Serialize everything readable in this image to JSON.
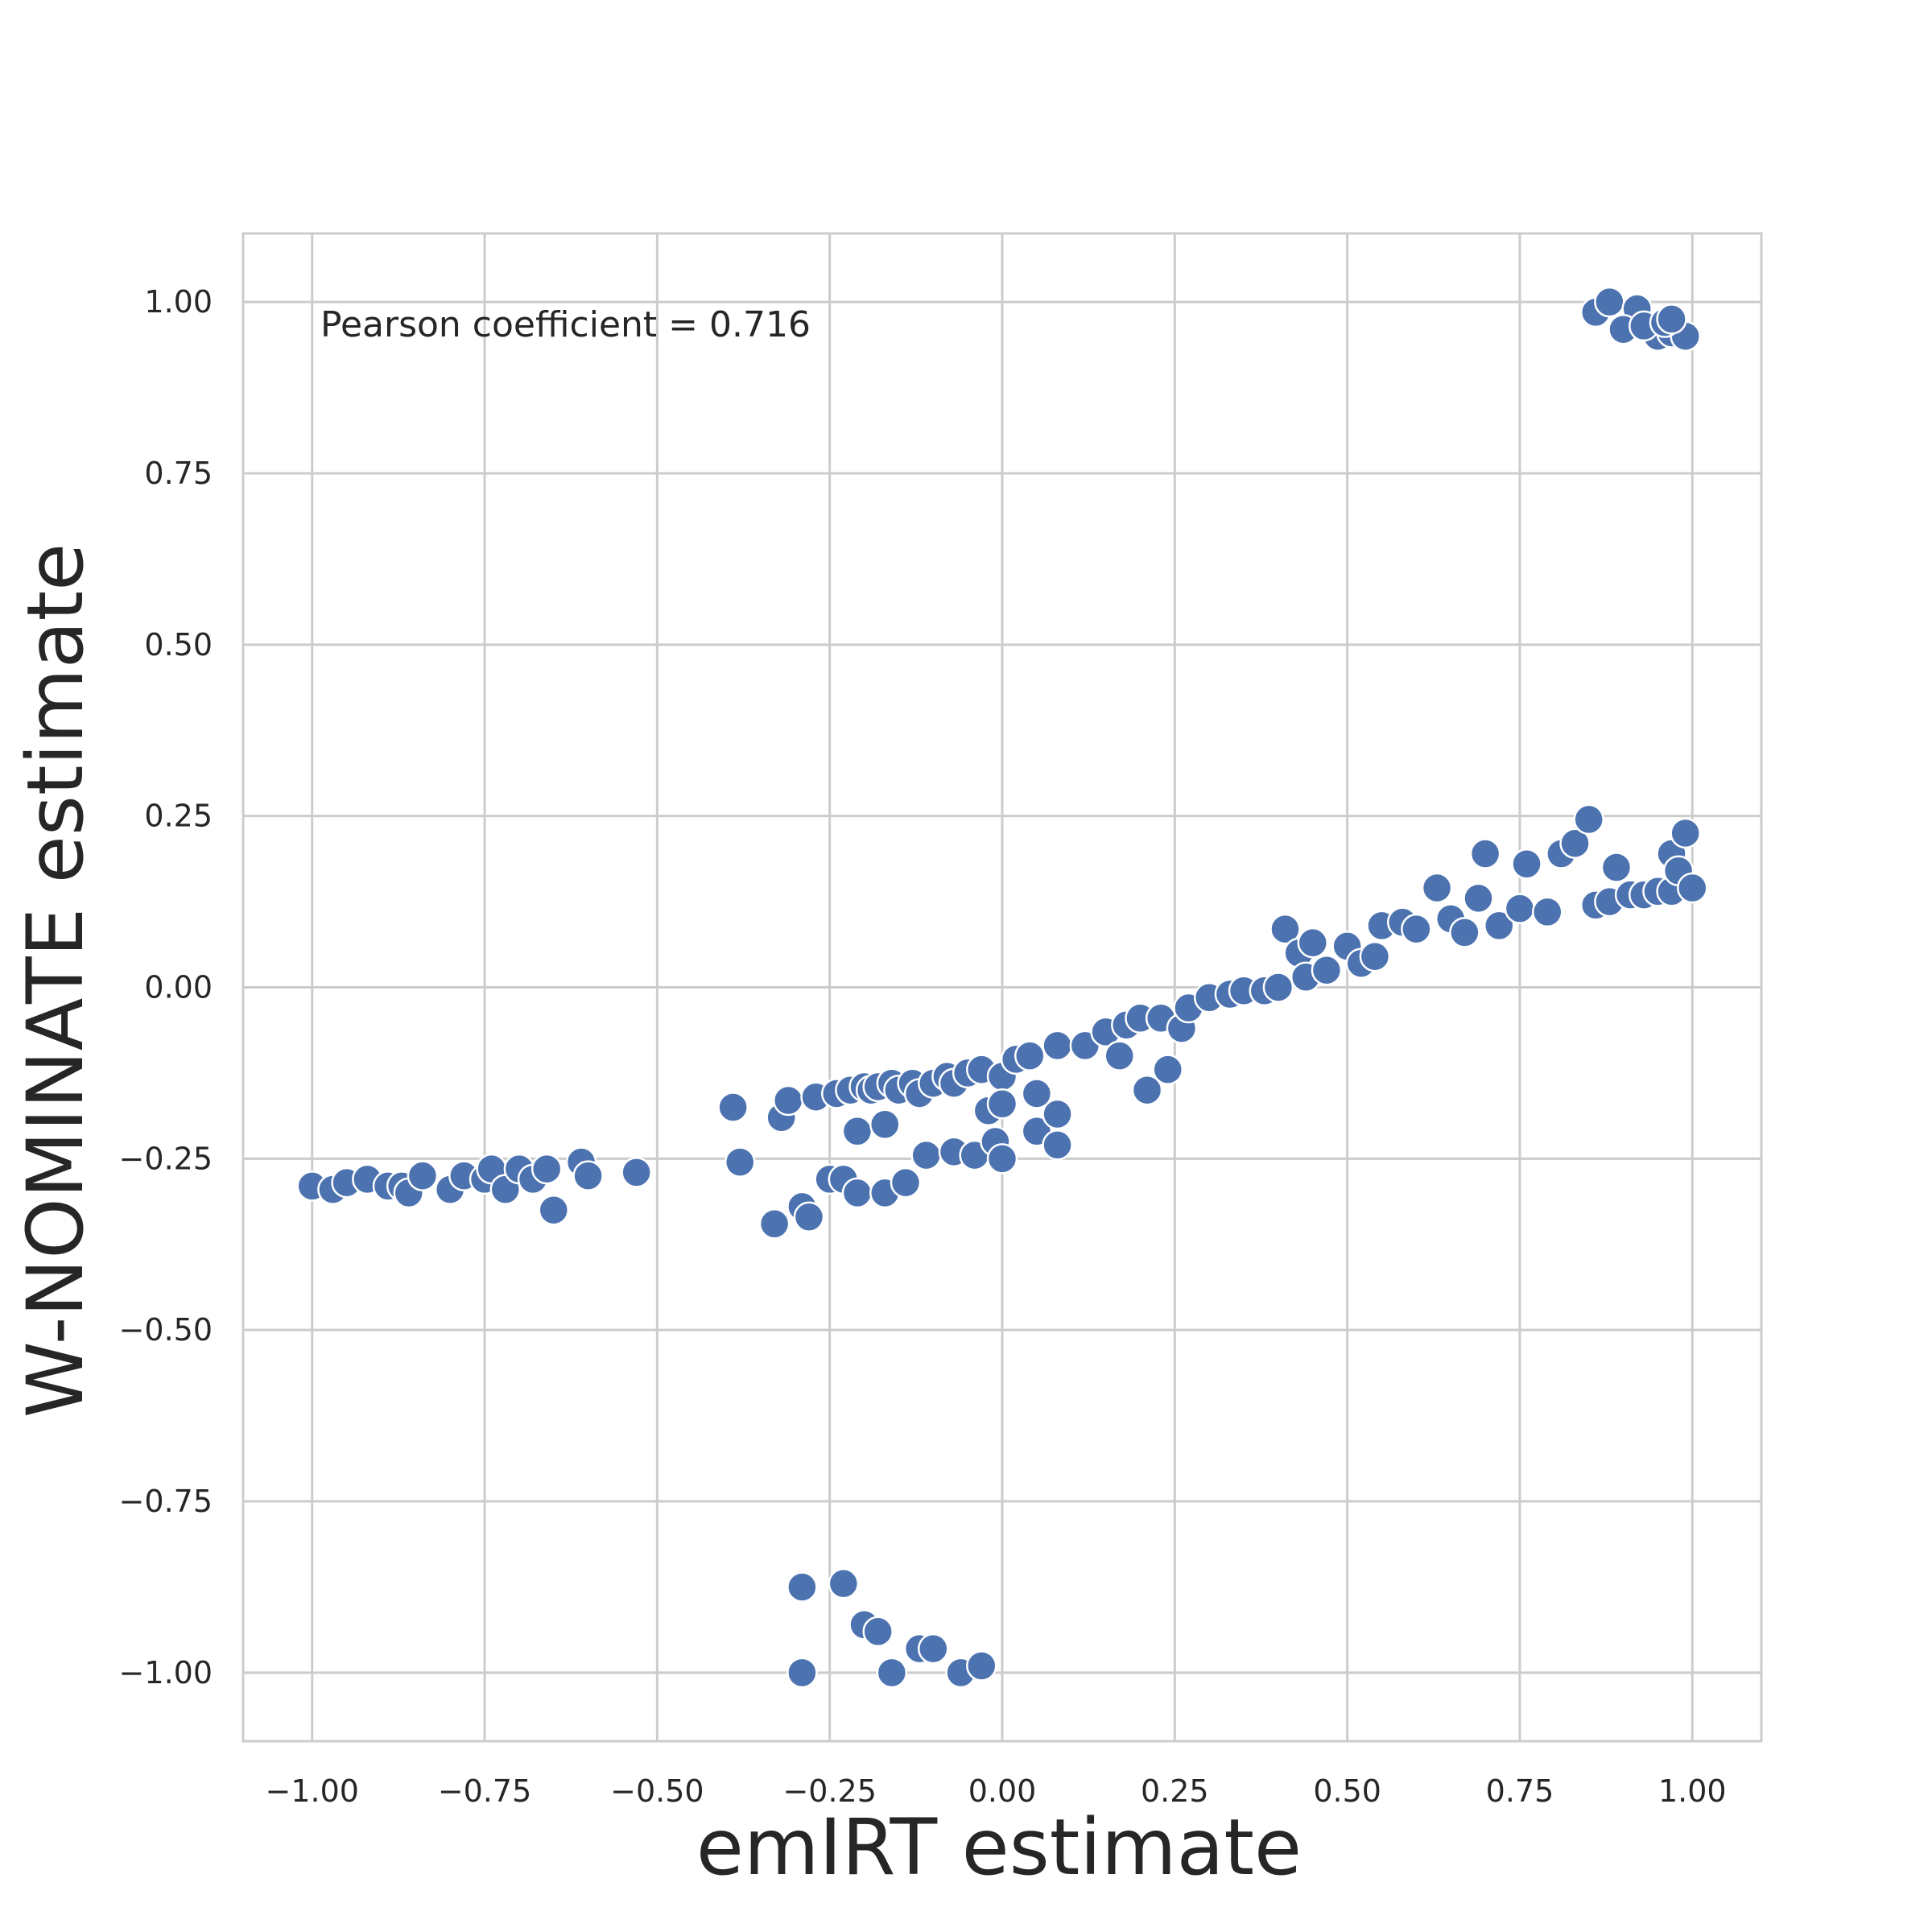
{
  "chart_data": {
    "type": "scatter",
    "xlabel": "emIRT estimate",
    "ylabel": "W-NOMINATE estimate",
    "annotation": "Pearson coefficient = 0.716",
    "xlim": [
      -1.1,
      1.1
    ],
    "ylim": [
      -1.1,
      1.1
    ],
    "xticks": [
      -1.0,
      -0.75,
      -0.5,
      -0.25,
      0.0,
      0.25,
      0.5,
      0.75,
      1.0
    ],
    "yticks": [
      -1.0,
      -0.75,
      -0.5,
      -0.25,
      0.0,
      0.25,
      0.5,
      0.75,
      1.0
    ],
    "xtick_labels": [
      "−1.00",
      "−0.75",
      "−0.50",
      "−0.25",
      "0.00",
      "0.25",
      "0.50",
      "0.75",
      "1.00"
    ],
    "ytick_labels": [
      "−1.00",
      "−0.75",
      "−0.50",
      "−0.25",
      "0.00",
      "0.25",
      "0.50",
      "0.75",
      "1.00"
    ],
    "grid": true,
    "marker_color": "#4c72b0",
    "marker_edge_color": "#ffffff",
    "points": [
      [
        0.86,
        0.985
      ],
      [
        0.88,
        1.0
      ],
      [
        0.92,
        0.99
      ],
      [
        0.9,
        0.96
      ],
      [
        0.95,
        0.95
      ],
      [
        0.93,
        0.965
      ],
      [
        0.97,
        0.955
      ],
      [
        0.99,
        0.95
      ],
      [
        0.96,
        0.97
      ],
      [
        0.97,
        0.975
      ],
      [
        -1.0,
        -0.29
      ],
      [
        -0.97,
        -0.295
      ],
      [
        -0.95,
        -0.285
      ],
      [
        -0.92,
        -0.28
      ],
      [
        -0.89,
        -0.29
      ],
      [
        -0.87,
        -0.29
      ],
      [
        -0.86,
        -0.3
      ],
      [
        -0.84,
        -0.275
      ],
      [
        -0.8,
        -0.295
      ],
      [
        -0.78,
        -0.275
      ],
      [
        -0.75,
        -0.28
      ],
      [
        -0.74,
        -0.265
      ],
      [
        -0.72,
        -0.295
      ],
      [
        -0.7,
        -0.265
      ],
      [
        -0.68,
        -0.28
      ],
      [
        -0.66,
        -0.265
      ],
      [
        -0.65,
        -0.325
      ],
      [
        -0.61,
        -0.255
      ],
      [
        -0.6,
        -0.275
      ],
      [
        -0.53,
        -0.27
      ],
      [
        -0.39,
        -0.175
      ],
      [
        -0.38,
        -0.255
      ],
      [
        -0.33,
        -0.345
      ],
      [
        -0.32,
        -0.19
      ],
      [
        -0.31,
        -0.165
      ],
      [
        -0.29,
        -0.32
      ],
      [
        -0.28,
        -0.335
      ],
      [
        -0.27,
        -0.16
      ],
      [
        -0.25,
        -0.28
      ],
      [
        -0.24,
        -0.155
      ],
      [
        -0.23,
        -0.28
      ],
      [
        -0.22,
        -0.15
      ],
      [
        -0.21,
        -0.3
      ],
      [
        -0.21,
        -0.21
      ],
      [
        -0.2,
        -0.145
      ],
      [
        -0.19,
        -0.15
      ],
      [
        -0.18,
        -0.145
      ],
      [
        -0.17,
        -0.3
      ],
      [
        -0.17,
        -0.2
      ],
      [
        -0.16,
        -0.14
      ],
      [
        -0.15,
        -0.15
      ],
      [
        -0.14,
        -0.285
      ],
      [
        -0.13,
        -0.14
      ],
      [
        -0.12,
        -0.155
      ],
      [
        -0.11,
        -0.245
      ],
      [
        -0.1,
        -0.14
      ],
      [
        -0.08,
        -0.13
      ],
      [
        -0.07,
        -0.24
      ],
      [
        -0.07,
        -0.14
      ],
      [
        -0.05,
        -0.125
      ],
      [
        -0.04,
        -0.245
      ],
      [
        -0.03,
        -0.12
      ],
      [
        -0.02,
        -0.18
      ],
      [
        -0.01,
        -0.225
      ],
      [
        0.0,
        -0.25
      ],
      [
        0.0,
        -0.13
      ],
      [
        0.0,
        -0.17
      ],
      [
        0.02,
        -0.105
      ],
      [
        0.04,
        -0.1
      ],
      [
        0.05,
        -0.155
      ],
      [
        0.05,
        -0.21
      ],
      [
        0.08,
        -0.185
      ],
      [
        0.08,
        -0.085
      ],
      [
        0.08,
        -0.23
      ],
      [
        0.12,
        -0.085
      ],
      [
        0.15,
        -0.065
      ],
      [
        0.17,
        -0.1
      ],
      [
        0.18,
        -0.055
      ],
      [
        0.2,
        -0.045
      ],
      [
        0.21,
        -0.15
      ],
      [
        0.23,
        -0.045
      ],
      [
        0.24,
        -0.12
      ],
      [
        0.26,
        -0.06
      ],
      [
        0.27,
        -0.03
      ],
      [
        0.3,
        -0.015
      ],
      [
        0.33,
        -0.01
      ],
      [
        0.35,
        -0.005
      ],
      [
        0.38,
        -0.005
      ],
      [
        0.4,
        0.0
      ],
      [
        0.41,
        0.085
      ],
      [
        0.43,
        0.05
      ],
      [
        0.44,
        0.015
      ],
      [
        0.45,
        0.065
      ],
      [
        0.47,
        0.025
      ],
      [
        0.5,
        0.06
      ],
      [
        0.52,
        0.035
      ],
      [
        0.54,
        0.045
      ],
      [
        0.55,
        0.09
      ],
      [
        0.58,
        0.095
      ],
      [
        0.6,
        0.085
      ],
      [
        0.63,
        0.145
      ],
      [
        0.65,
        0.1
      ],
      [
        0.67,
        0.08
      ],
      [
        0.69,
        0.13
      ],
      [
        0.7,
        0.195
      ],
      [
        0.72,
        0.09
      ],
      [
        0.75,
        0.115
      ],
      [
        0.76,
        0.18
      ],
      [
        0.79,
        0.11
      ],
      [
        0.81,
        0.195
      ],
      [
        0.83,
        0.21
      ],
      [
        0.85,
        0.245
      ],
      [
        0.86,
        0.12
      ],
      [
        0.88,
        0.125
      ],
      [
        0.89,
        0.175
      ],
      [
        0.91,
        0.135
      ],
      [
        0.93,
        0.135
      ],
      [
        0.95,
        0.14
      ],
      [
        0.97,
        0.14
      ],
      [
        0.97,
        0.195
      ],
      [
        0.98,
        0.17
      ],
      [
        0.99,
        0.225
      ],
      [
        1.0,
        0.145
      ],
      [
        -0.29,
        -0.875
      ],
      [
        -0.23,
        -0.87
      ],
      [
        -0.29,
        -1.0
      ],
      [
        -0.2,
        -0.93
      ],
      [
        -0.18,
        -0.94
      ],
      [
        -0.16,
        -1.0
      ],
      [
        -0.12,
        -0.965
      ],
      [
        -0.1,
        -0.965
      ],
      [
        -0.06,
        -1.0
      ],
      [
        -0.03,
        -0.99
      ]
    ]
  }
}
